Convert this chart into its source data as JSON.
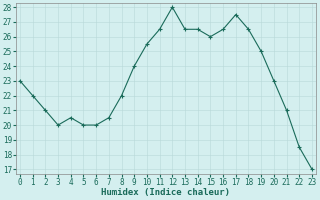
{
  "x": [
    0,
    1,
    2,
    3,
    4,
    5,
    6,
    7,
    8,
    9,
    10,
    11,
    12,
    13,
    14,
    15,
    16,
    17,
    18,
    19,
    20,
    21,
    22,
    23
  ],
  "y": [
    23,
    22,
    21,
    20,
    20.5,
    20,
    20,
    20.5,
    22,
    24,
    25.5,
    26.5,
    28,
    26.5,
    26.5,
    26,
    26.5,
    27.5,
    26.5,
    25,
    23,
    21,
    18.5,
    17
  ],
  "line_color": "#1a6b5a",
  "marker": "+",
  "marker_size": 3,
  "marker_lw": 0.8,
  "line_width": 0.8,
  "bg_color": "#d4efef",
  "grid_color": "#b8d8d8",
  "xlabel": "Humidex (Indice chaleur)",
  "ylim": [
    17,
    28
  ],
  "yticks": [
    17,
    18,
    19,
    20,
    21,
    22,
    23,
    24,
    25,
    26,
    27,
    28
  ],
  "xticks": [
    0,
    1,
    2,
    3,
    4,
    5,
    6,
    7,
    8,
    9,
    10,
    11,
    12,
    13,
    14,
    15,
    16,
    17,
    18,
    19,
    20,
    21,
    22,
    23
  ],
  "xlim": [
    -0.3,
    23.3
  ],
  "xlabel_fontsize": 6.5,
  "tick_fontsize": 5.5,
  "tick_color": "#1a6b5a",
  "label_color": "#1a6b5a"
}
